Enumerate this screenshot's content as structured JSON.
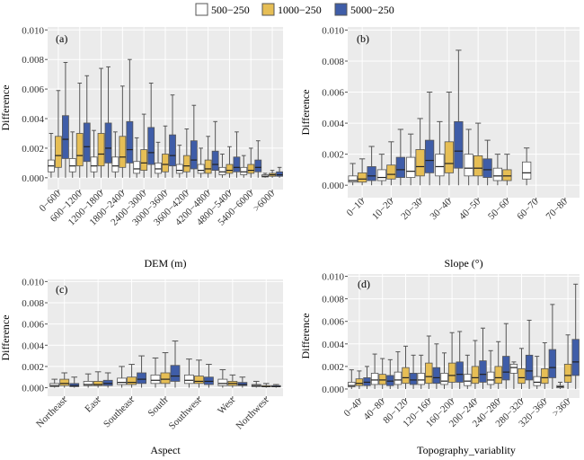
{
  "legend": [
    {
      "label": "500−250",
      "color": "#ffffff"
    },
    {
      "label": "1000−250",
      "color": "#e6be55"
    },
    {
      "label": "5000−250",
      "color": "#3f5da8"
    }
  ],
  "colors": {
    "panel_bg": "#ebebeb",
    "grid": "#ffffff",
    "whisker": "#555555",
    "median": "#222222"
  },
  "chart_data": [
    {
      "type": "boxplot",
      "tag": "(a)",
      "xlabel": "DEM (m)",
      "ylabel": "Difference",
      "ylim": [
        -0.0008,
        0.0102
      ],
      "yticks": [
        "0.000",
        "0.002",
        "0.004",
        "0.006",
        "0.008",
        "0.010"
      ],
      "categories": [
        "0−600",
        "600−1200",
        "1200−1800",
        "1800−2400",
        "2400−3000",
        "3000−3600",
        "3600−4200",
        "4200−4800",
        "4800−5400",
        "5400−6000",
        ">6000"
      ],
      "series": [
        {
          "boxes": [
            [
              0,
              0.0004,
              0.0008,
              0.0012,
              0.003
            ],
            [
              0,
              0.0004,
              0.0008,
              0.0013,
              0.0031
            ],
            [
              0,
              0.0004,
              0.0008,
              0.0014,
              0.0032
            ],
            [
              0,
              0.0004,
              0.0008,
              0.0014,
              0.0031
            ],
            [
              0,
              0.0003,
              0.0006,
              0.0011,
              0.0027
            ],
            [
              0,
              0.0003,
              0.0006,
              0.001,
              0.0024
            ],
            [
              0,
              0.0003,
              0.0005,
              0.0009,
              0.0022
            ],
            [
              0,
              0.0003,
              0.0005,
              0.0009,
              0.002
            ],
            [
              0,
              0.0002,
              0.0004,
              0.0007,
              0.0016
            ],
            [
              0,
              0.0002,
              0.0004,
              0.0007,
              0.0015
            ],
            [
              0,
              5e-05,
              0.0001,
              0.0002,
              0.0003
            ]
          ]
        },
        {
          "boxes": [
            [
              0,
              0.0007,
              0.0015,
              0.0028,
              0.0059
            ],
            [
              0,
              0.0008,
              0.0015,
              0.003,
              0.0064
            ],
            [
              0,
              0.0008,
              0.0016,
              0.003,
              0.0074
            ],
            [
              0,
              0.0007,
              0.0014,
              0.0028,
              0.0062
            ],
            [
              0,
              0.0005,
              0.001,
              0.0019,
              0.0043
            ],
            [
              0,
              0.0004,
              0.0009,
              0.0016,
              0.0035
            ],
            [
              0,
              0.0004,
              0.0008,
              0.0015,
              0.0033
            ],
            [
              0,
              0.0003,
              0.0006,
              0.0012,
              0.0028
            ],
            [
              0,
              0.0003,
              0.0005,
              0.0009,
              0.0021
            ],
            [
              0,
              0.0003,
              0.0005,
              0.0009,
              0.002
            ],
            [
              0,
              0.0001,
              0.0002,
              0.0003,
              0.0005
            ]
          ]
        },
        {
          "boxes": [
            [
              0,
              0.0013,
              0.0026,
              0.0042,
              0.0078
            ],
            [
              0,
              0.0011,
              0.0021,
              0.0037,
              0.0069
            ],
            [
              0,
              0.001,
              0.002,
              0.0037,
              0.0075
            ],
            [
              0,
              0.001,
              0.0019,
              0.0038,
              0.008
            ],
            [
              0,
              0.0009,
              0.0017,
              0.0034,
              0.0064
            ],
            [
              0,
              0.0008,
              0.0015,
              0.0029,
              0.0056
            ],
            [
              0,
              0.0006,
              0.0012,
              0.0025,
              0.0049
            ],
            [
              0,
              0.0005,
              0.0009,
              0.0018,
              0.0038
            ],
            [
              0,
              0.0004,
              0.0007,
              0.0014,
              0.0031
            ],
            [
              0,
              0.0004,
              0.0007,
              0.0012,
              0.0025
            ],
            [
              0,
              0.0001,
              0.0002,
              0.0004,
              0.0007
            ]
          ]
        }
      ]
    },
    {
      "type": "boxplot",
      "tag": "(b)",
      "xlabel": "Slope (°)",
      "ylabel": "Difference",
      "ylim": [
        -0.0008,
        0.0102
      ],
      "yticks": [
        "0.000",
        "0.002",
        "0.004",
        "0.006",
        "0.008",
        "0.010"
      ],
      "categories": [
        "0−10",
        "10−20",
        "20−30",
        "30−40",
        "40−50",
        "50−60",
        "60−70",
        "70−80"
      ],
      "series": [
        {
          "boxes": [
            [
              0,
              0.0002,
              0.0003,
              0.0006,
              0.0014
            ],
            [
              0,
              0.0003,
              0.0005,
              0.001,
              0.002
            ],
            [
              0,
              0.0005,
              0.0009,
              0.0018,
              0.0033
            ],
            [
              0,
              0.0006,
              0.0012,
              0.002,
              0.0041
            ],
            [
              0,
              0.0006,
              0.0011,
              0.002,
              0.0036
            ],
            [
              0,
              0.0003,
              0.0006,
              0.0011,
              0.002
            ],
            [
              0,
              0.0004,
              0.0008,
              0.0015,
              0.0024
            ],
            null
          ]
        },
        {
          "boxes": [
            [
              0,
              0.0002,
              0.0004,
              0.0008,
              0.0017
            ],
            [
              0,
              0.0004,
              0.0007,
              0.0013,
              0.0028
            ],
            [
              0,
              0.0006,
              0.0012,
              0.0023,
              0.0043
            ],
            [
              0,
              0.0008,
              0.0014,
              0.0028,
              0.006
            ],
            [
              0,
              0.0006,
              0.0011,
              0.0019,
              0.004
            ],
            [
              0,
              0.0003,
              0.0006,
              0.001,
              0.002
            ],
            null,
            null
          ]
        },
        {
          "boxes": [
            [
              0,
              0.0003,
              0.0006,
              0.0012,
              0.0025
            ],
            [
              0,
              0.0005,
              0.001,
              0.0018,
              0.0036
            ],
            [
              0,
              0.0008,
              0.0016,
              0.0029,
              0.006
            ],
            [
              0,
              0.0011,
              0.0022,
              0.0041,
              0.0087
            ],
            [
              0,
              0.0005,
              0.001,
              0.0017,
              0.0029
            ],
            null,
            null,
            null
          ]
        }
      ]
    },
    {
      "type": "boxplot",
      "tag": "(c)",
      "xlabel": "Aspect",
      "ylabel": "Difference",
      "ylim": [
        -0.0008,
        0.0102
      ],
      "yticks": [
        "0.000",
        "0.002",
        "0.004",
        "0.006",
        "0.008",
        "0.010"
      ],
      "categories": [
        "Northeast",
        "East",
        "Southeast",
        "South",
        "Southwest",
        "West",
        "Northwest"
      ],
      "series": [
        {
          "boxes": [
            [
              0,
              0.0001,
              0.0002,
              0.0004,
              0.0008
            ],
            [
              0,
              0.0002,
              0.0003,
              0.0006,
              0.0013
            ],
            [
              0,
              0.0003,
              0.0005,
              0.0009,
              0.002
            ],
            [
              0,
              0.0004,
              0.0007,
              0.0012,
              0.0028
            ],
            [
              0,
              0.0004,
              0.0007,
              0.0012,
              0.0027
            ],
            [
              0,
              0.0002,
              0.0004,
              0.0008,
              0.0017
            ],
            [
              0,
              0.0001,
              0.0002,
              0.0003,
              0.0006
            ]
          ]
        },
        {
          "boxes": [
            [
              0,
              0.0002,
              0.0004,
              0.0008,
              0.0014
            ],
            [
              0,
              0.0002,
              0.0003,
              0.0006,
              0.0015
            ],
            [
              0,
              0.0003,
              0.0005,
              0.001,
              0.0022
            ],
            [
              0,
              0.0004,
              0.0008,
              0.0014,
              0.0033
            ],
            [
              0,
              0.0004,
              0.0006,
              0.0011,
              0.0026
            ],
            [
              0,
              0.0002,
              0.0004,
              0.0006,
              0.0012
            ],
            [
              0,
              0.0001,
              0.0001,
              0.0002,
              0.0004
            ]
          ]
        },
        {
          "boxes": [
            [
              0,
              0.0001,
              0.0002,
              0.0004,
              0.001
            ],
            [
              0,
              0.0002,
              0.0004,
              0.0007,
              0.0014
            ],
            [
              0,
              0.0004,
              0.0008,
              0.0014,
              0.003
            ],
            [
              0,
              0.0006,
              0.0011,
              0.0021,
              0.0044
            ],
            [
              0,
              0.0003,
              0.0006,
              0.001,
              0.0022
            ],
            [
              0,
              0.0002,
              0.0003,
              0.0005,
              0.001
            ],
            [
              0,
              0.0001,
              0.0001,
              0.0002,
              0.0003
            ]
          ]
        }
      ]
    },
    {
      "type": "boxplot",
      "tag": "(d)",
      "xlabel": "Topography_variablity",
      "ylabel": "Difference",
      "ylim": [
        -0.0008,
        0.0102
      ],
      "yticks": [
        "0.000",
        "0.002",
        "0.004",
        "0.006",
        "0.008",
        "0.010"
      ],
      "categories": [
        "0−40",
        "40−80",
        "80−120",
        "120−160",
        "160−200",
        "200−240",
        "240−280",
        "280−320",
        "320−360",
        ">360"
      ],
      "series": [
        {
          "boxes": [
            [
              0,
              0.0002,
              0.0003,
              0.0006,
              0.0017
            ],
            [
              0,
              0.0004,
              0.0008,
              0.0014,
              0.0031
            ],
            [
              0,
              0.0004,
              0.0008,
              0.0015,
              0.0033
            ],
            [
              0,
              0.0004,
              0.0008,
              0.0014,
              0.003
            ],
            [
              0,
              0.0004,
              0.0007,
              0.0014,
              0.0032
            ],
            [
              0,
              0.0003,
              0.0007,
              0.0013,
              0.003
            ],
            [
              0,
              0.0004,
              0.0008,
              0.0015,
              0.0034
            ],
            [
              0,
              0.0014,
              0.0019,
              0.0022,
              0.0024
            ],
            [
              0,
              0.0003,
              0.0006,
              0.0011,
              0.0029
            ],
            [
              0,
              0.0001,
              0.0002,
              0.0003,
              0.0006
            ]
          ]
        },
        {
          "boxes": [
            [
              0,
              0.0003,
              0.0005,
              0.0009,
              0.0016
            ],
            [
              0,
              0.0004,
              0.0008,
              0.0013,
              0.0027
            ],
            [
              0,
              0.0005,
              0.001,
              0.0019,
              0.0038
            ],
            [
              0,
              0.0005,
              0.0011,
              0.0023,
              0.0047
            ],
            [
              0,
              0.0006,
              0.0012,
              0.0023,
              0.005
            ],
            [
              0,
              0.0005,
              0.001,
              0.002,
              0.0043
            ],
            [
              0,
              0.0005,
              0.001,
              0.002,
              0.0042
            ],
            [
              0,
              0.0005,
              0.001,
              0.0018,
              0.0036
            ],
            [
              0,
              0.0005,
              0.001,
              0.0018,
              0.0041
            ],
            [
              0,
              0.0006,
              0.0012,
              0.0022,
              0.0048
            ]
          ]
        },
        {
          "boxes": [
            [
              0,
              0.0003,
              0.0006,
              0.001,
              0.002
            ],
            [
              0,
              0.0003,
              0.0007,
              0.0012,
              0.0026
            ],
            [
              0,
              0.0004,
              0.0008,
              0.0014,
              0.003
            ],
            [
              0,
              0.0005,
              0.001,
              0.0019,
              0.004
            ],
            [
              0,
              0.0006,
              0.0013,
              0.0024,
              0.0051
            ],
            [
              0,
              0.0006,
              0.0013,
              0.0025,
              0.0054
            ],
            [
              0,
              0.0008,
              0.0015,
              0.0029,
              0.0058
            ],
            [
              0,
              0.0008,
              0.0016,
              0.003,
              0.0061
            ],
            [
              0,
              0.001,
              0.0019,
              0.0035,
              0.0075
            ],
            [
              0,
              0.0012,
              0.0024,
              0.0044,
              0.0093
            ]
          ]
        }
      ]
    }
  ]
}
